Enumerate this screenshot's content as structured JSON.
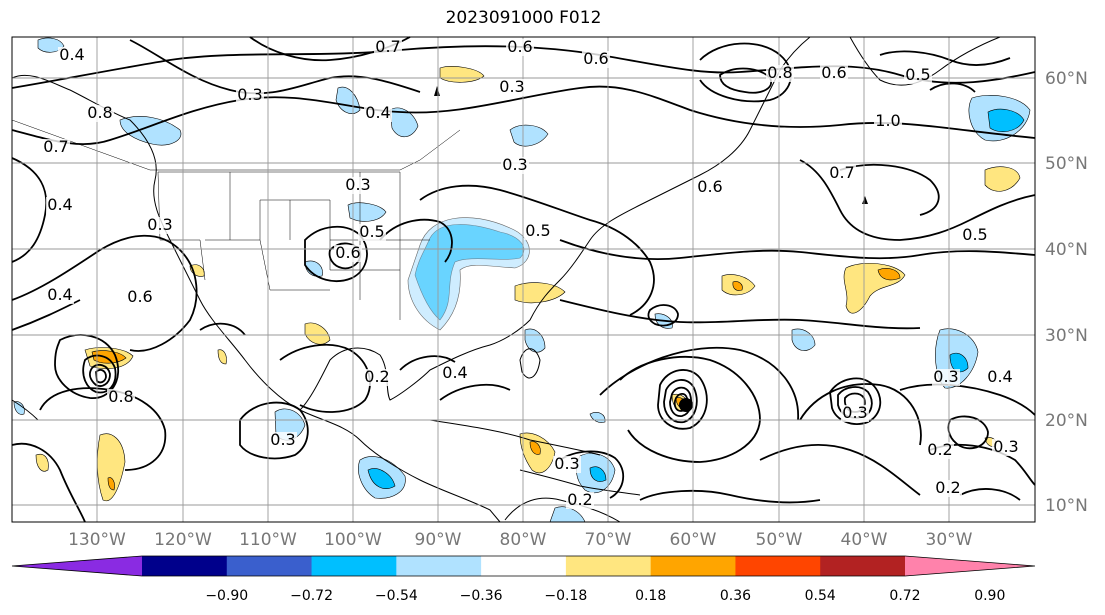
{
  "title": "2023091000 F012",
  "lon_ticks": [
    "130°W",
    "120°W",
    "110°W",
    "100°W",
    "90°W",
    "80°W",
    "70°W",
    "60°W",
    "50°W",
    "40°W",
    "30°W"
  ],
  "lat_ticks": [
    "60°N",
    "50°N",
    "40°N",
    "30°N",
    "20°N",
    "10°N"
  ],
  "colorbar": {
    "ticks": [
      "−0.90",
      "−0.72",
      "−0.54",
      "−0.36",
      "−0.18",
      "0.18",
      "0.36",
      "0.54",
      "0.72",
      "0.90"
    ],
    "colors": [
      "#8a2be2",
      "#00008b",
      "#3a5fcd",
      "#00bfff",
      "#b0e2ff",
      "#ffffff",
      "#ffe680",
      "#ffa500",
      "#ff4500",
      "#b22222",
      "#ff82ab"
    ]
  },
  "contour_labels": [
    "0.4",
    "0.7",
    "0.6",
    "0.6",
    "0.3",
    "0.4",
    "0.8",
    "0.6",
    "0.7",
    "0.5",
    "1.0",
    "0.4",
    "0.3",
    "0.3",
    "0.4",
    "0.5",
    "0.6",
    "0.3",
    "0.4",
    "0.6",
    "0.2",
    "0.3",
    "0.3",
    "0.2",
    "0.3",
    "0.5",
    "0.4",
    "0.3",
    "0.2",
    "0.2",
    "0.8",
    "0.3",
    "0.6",
    "0.7",
    "0.5",
    "0.3",
    "0.8"
  ]
}
